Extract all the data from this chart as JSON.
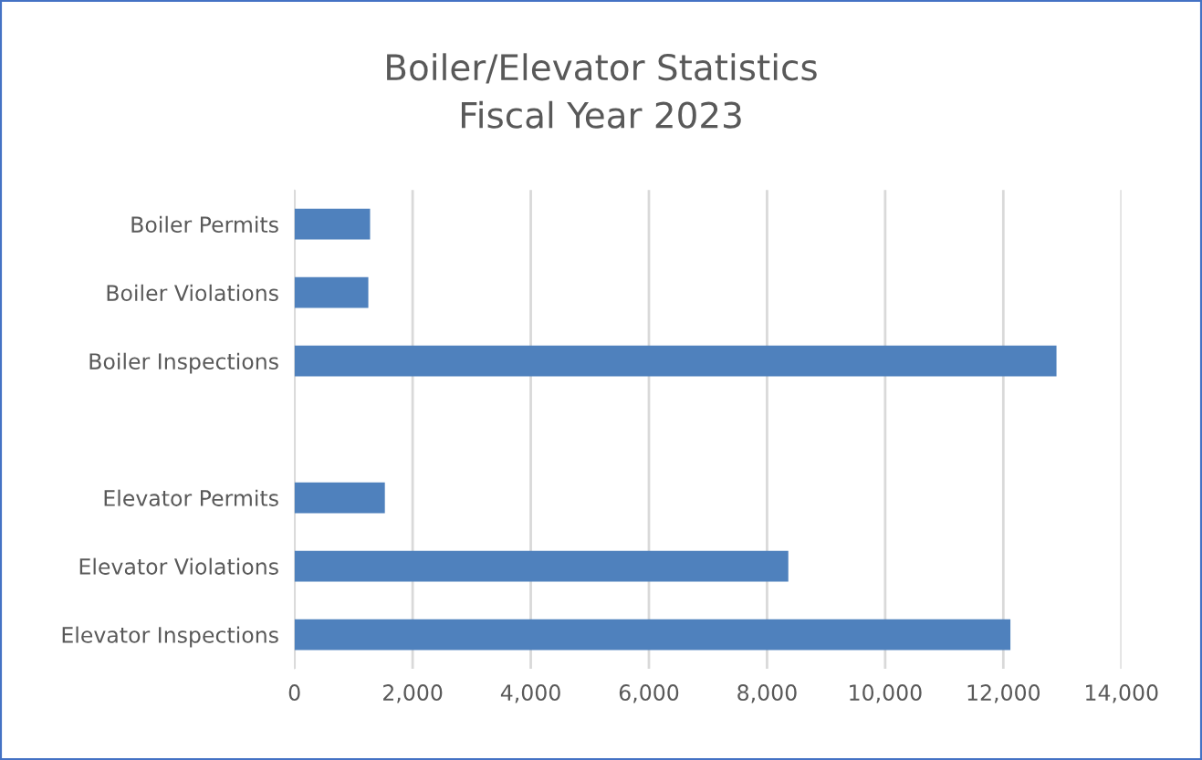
{
  "chart_data": {
    "type": "bar",
    "orientation": "horizontal",
    "title": "Boiler/Elevator Statistics\nFiscal Year 2023",
    "categories": [
      "Boiler Permits",
      "Boiler Violations",
      "Boiler Inspections",
      null,
      "Elevator Permits",
      "Elevator Violations",
      "Elevator Inspections"
    ],
    "values": [
      1280,
      1250,
      12900,
      null,
      1530,
      8360,
      12120
    ],
    "color": "#4f81bd",
    "xlim": [
      0,
      14000
    ],
    "xticks": [
      {
        "value": 0,
        "label": "0"
      },
      {
        "value": 2000,
        "label": "2,000"
      },
      {
        "value": 4000,
        "label": "4,000"
      },
      {
        "value": 6000,
        "label": "6,000"
      },
      {
        "value": 8000,
        "label": "8,000"
      },
      {
        "value": 10000,
        "label": "10,000"
      },
      {
        "value": 12000,
        "label": "12,000"
      },
      {
        "value": 14000,
        "label": "14,000"
      }
    ],
    "grid": "x",
    "legend": false
  }
}
